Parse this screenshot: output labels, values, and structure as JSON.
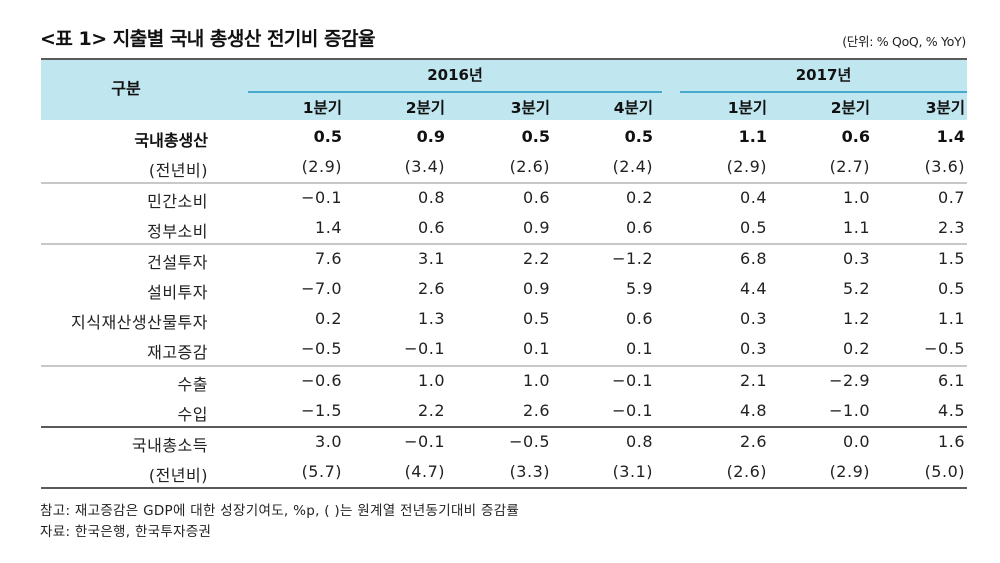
{
  "title": "<표 1> 지출별 국내 총생산 전기비 증감율",
  "unit": "(단위: % QoQ, % YoY)",
  "header": {
    "row_label": "구분",
    "years": [
      {
        "label": "2016년",
        "quarters": [
          "1분기",
          "2분기",
          "3분기",
          "4분기"
        ]
      },
      {
        "label": "2017년",
        "quarters": [
          "1분기",
          "2분기",
          "3분기"
        ]
      }
    ]
  },
  "rows": [
    {
      "label": "국내총생산",
      "bold": true,
      "values": [
        "0.5",
        "0.9",
        "0.5",
        "0.5",
        "1.1",
        "0.6",
        "1.4"
      ]
    },
    {
      "label": "(전년비)",
      "values": [
        "(2.9)",
        "(3.4)",
        "(2.6)",
        "(2.4)",
        "(2.9)",
        "(2.7)",
        "(3.6)"
      ]
    },
    {
      "label": "민간소비",
      "values": [
        "−0.1",
        "0.8",
        "0.6",
        "0.2",
        "0.4",
        "1.0",
        "0.7"
      ]
    },
    {
      "label": "정부소비",
      "values": [
        "1.4",
        "0.6",
        "0.9",
        "0.6",
        "0.5",
        "1.1",
        "2.3"
      ]
    },
    {
      "label": "건설투자",
      "values": [
        "7.6",
        "3.1",
        "2.2",
        "−1.2",
        "6.8",
        "0.3",
        "1.5"
      ]
    },
    {
      "label": "설비투자",
      "values": [
        "−7.0",
        "2.6",
        "0.9",
        "5.9",
        "4.4",
        "5.2",
        "0.5"
      ]
    },
    {
      "label": "지식재산생산물투자",
      "values": [
        "0.2",
        "1.3",
        "0.5",
        "0.6",
        "0.3",
        "1.2",
        "1.1"
      ]
    },
    {
      "label": "재고증감",
      "values": [
        "−0.5",
        "−0.1",
        "0.1",
        "0.1",
        "0.3",
        "0.2",
        "−0.5"
      ]
    },
    {
      "label": "수출",
      "values": [
        "−0.6",
        "1.0",
        "1.0",
        "−0.1",
        "2.1",
        "−2.9",
        "6.1"
      ]
    },
    {
      "label": "수입",
      "values": [
        "−1.5",
        "2.2",
        "2.6",
        "−0.1",
        "4.8",
        "−1.0",
        "4.5"
      ]
    },
    {
      "label": "국내총소득",
      "values": [
        "3.0",
        "−0.1",
        "−0.5",
        "0.8",
        "2.6",
        "0.0",
        "1.6"
      ]
    },
    {
      "label": "(전년비)",
      "values": [
        "(5.7)",
        "(4.7)",
        "(3.3)",
        "(3.1)",
        "(2.6)",
        "(2.9)",
        "(5.0)"
      ]
    }
  ],
  "notes": [
    "참고: 재고증감은 GDP에 대한 성장기여도, %p, ( )는 원계열 전년동기대비 증감률",
    "자료: 한국은행, 한국투자증권"
  ],
  "colors": {
    "header_bg": "#c0e6f0",
    "header_rule": "#4aa8cf",
    "border_dark": "#5a5a5a",
    "border_light": "#c8c8c8"
  }
}
